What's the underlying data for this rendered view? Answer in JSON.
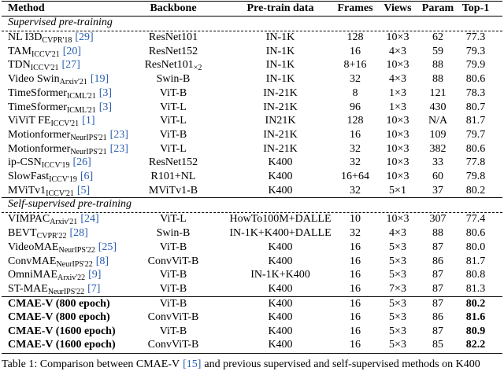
{
  "table": {
    "header": [
      "Method",
      "Backbone",
      "Pre-train data",
      "Frames",
      "Views",
      "Param",
      "Top-1"
    ],
    "sections": [
      {
        "title": "Supervised pre-training",
        "rows": [
          {
            "method": {
              "name": "NL I3D",
              "venue": "CVPR'18",
              "cite": "[29]"
            },
            "cells": [
              "ResNet101",
              "IN-1K",
              "128",
              "10×3",
              "62",
              "77.3"
            ]
          },
          {
            "method": {
              "name": "TAM",
              "venue": "ICCV'21",
              "cite": "[20]"
            },
            "cells": [
              "ResNet152",
              "IN-1K",
              "16",
              "4×3",
              "59",
              "79.3"
            ]
          },
          {
            "method": {
              "name": "TDN",
              "venue": "ICCV'21",
              "cite": "[27]"
            },
            "cells": [
              {
                "text": "ResNet101",
                "sub": "×2"
              },
              "IN-1K",
              "8+16",
              "10×3",
              "88",
              "79.9"
            ]
          },
          {
            "method": {
              "name": "Video Swin",
              "venue": "Arxiv'21",
              "cite": "[19]"
            },
            "cells": [
              "Swin-B",
              "IN-1K",
              "32",
              "4×3",
              "88",
              "80.6"
            ]
          },
          {
            "method": {
              "name": "TimeSformer",
              "venue": "ICML'21",
              "cite": "[3]"
            },
            "cells": [
              "ViT-B",
              "IN-21K",
              "8",
              "1×3",
              "121",
              "78.3"
            ]
          },
          {
            "method": {
              "name": "TimeSformer",
              "venue": "ICML'21",
              "cite": "[3]"
            },
            "cells": [
              "ViT-L",
              "IN-21K",
              "96",
              "1×3",
              "430",
              "80.7"
            ]
          },
          {
            "method": {
              "name": "ViViT FE",
              "venue": "ICCV'21",
              "cite": "[1]"
            },
            "cells": [
              "ViT-L",
              "IN21K",
              "128",
              "10×3",
              "N/A",
              "81.7"
            ]
          },
          {
            "method": {
              "name": "Motionformer",
              "venue": "NeurIPS'21",
              "cite": "[23]"
            },
            "cells": [
              "ViT-B",
              "IN-21K",
              "16",
              "10×3",
              "109",
              "79.7"
            ]
          },
          {
            "method": {
              "name": "Motionformer",
              "venue": "NeurIPS'21",
              "cite": "[23]"
            },
            "cells": [
              "ViT-L",
              "IN-21K",
              "32",
              "10×3",
              "382",
              "80.6"
            ]
          },
          {
            "method": {
              "name": "ip-CSN",
              "venue": "ICCV'19",
              "cite": "[26]"
            },
            "cells": [
              "ResNet152",
              "K400",
              "32",
              "10×3",
              "33",
              "77.8"
            ]
          },
          {
            "method": {
              "name": "SlowFast",
              "venue": "ICCV'19",
              "cite": "[6]"
            },
            "cells": [
              "R101+NL",
              "K400",
              "16+64",
              "10×3",
              "60",
              "79.8"
            ]
          },
          {
            "method": {
              "name": "MViTv1",
              "venue": "ICCV'21",
              "cite": "[5]"
            },
            "cells": [
              "MViTv1-B",
              "K400",
              "32",
              "5×1",
              "37",
              "80.2"
            ]
          }
        ]
      },
      {
        "title": "Self-supervised pre-training",
        "rows": [
          {
            "method": {
              "name": "VIMPAC",
              "venue": "Arxiv'21",
              "cite": "[24]"
            },
            "cells": [
              "ViT-L",
              "HowTo100M+DALLE",
              "10",
              "10×3",
              "307",
              "77.4"
            ]
          },
          {
            "method": {
              "name": "BEVT",
              "venue": "CVPR'22",
              "cite": "[28]"
            },
            "cells": [
              "Swin-B",
              "IN-1K+K400+DALLE",
              "32",
              "4×3",
              "88",
              "80.6"
            ]
          },
          {
            "method": {
              "name": "VideoMAE",
              "venue": "NeurIPS'22",
              "cite": "[25]"
            },
            "cells": [
              "ViT-B",
              "K400",
              "16",
              "5×3",
              "87",
              "80.0"
            ]
          },
          {
            "method": {
              "name": "ConvMAE",
              "venue": "NeurIPS'22",
              "cite": "[8]"
            },
            "cells": [
              "ConvViT-B",
              "K400",
              "16",
              "5×3",
              "86",
              "81.7"
            ]
          },
          {
            "method": {
              "name": "OmniMAE",
              "venue": "Arxiv'22",
              "cite": "[9]"
            },
            "cells": [
              "ViT-B",
              "IN-1K+K400",
              "16",
              "5×3",
              "87",
              "80.8"
            ]
          },
          {
            "method": {
              "name": "ST-MAE",
              "venue": "NeurIPS'22",
              "cite": "[7]"
            },
            "cells": [
              "ViT-B",
              "K400",
              "16",
              "7×3",
              "87",
              "81.3"
            ]
          }
        ]
      }
    ],
    "ours": [
      {
        "method": "CMAE-V (800 epoch)",
        "cells": [
          "ViT-B",
          "K400",
          "16",
          "5×3",
          "87",
          "80.2"
        ]
      },
      {
        "method": "CMAE-V (800 epoch)",
        "cells": [
          "ConvViT-B",
          "K400",
          "16",
          "5×3",
          "86",
          "81.6"
        ]
      },
      {
        "method": "CMAE-V (1600 epoch)",
        "cells": [
          "ViT-B",
          "K400",
          "16",
          "5×3",
          "87",
          "80.9"
        ]
      },
      {
        "method": "CMAE-V (1600 epoch)",
        "cells": [
          "ConvViT-B",
          "K400",
          "16",
          "5×3",
          "85",
          "82.2"
        ]
      }
    ],
    "caption": {
      "prefix": "Table 1: Comparison between CMAE-V",
      "cite": "[15]",
      "suffix": "and previous supervised and self-supervised methods on K400"
    }
  }
}
